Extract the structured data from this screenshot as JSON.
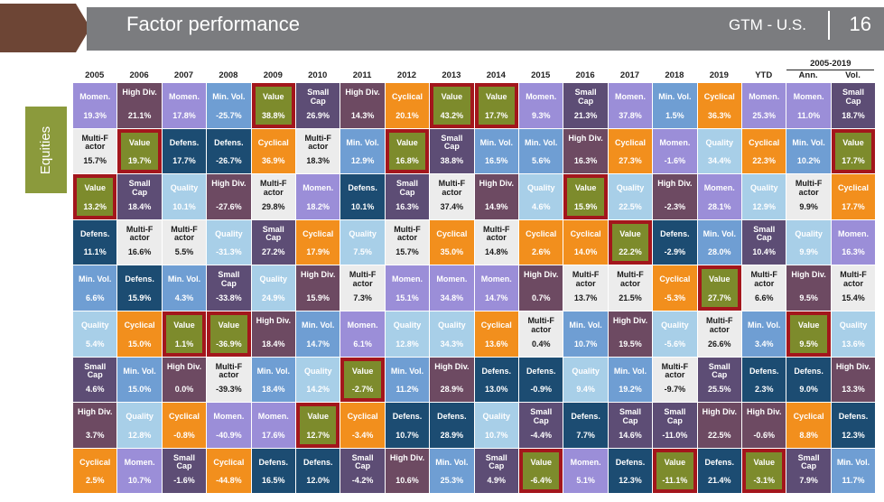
{
  "header": {
    "title": "Factor performance",
    "section": "GTM - U.S.",
    "page": "16"
  },
  "side_tab": "Equities",
  "colors": {
    "Momen.": "#9b8ed8",
    "High Div.": "#6d4a62",
    "Min. Vol.": "#6f9ed3",
    "Value": "#7d8b2c",
    "Small Cap": "#5d4d75",
    "Cyclical": "#f28f1d",
    "Multi-Factor": "#ececec",
    "Defens.": "#1c4c72",
    "Quality": "#a8cfe8",
    "highlight": "#a3161c",
    "header_bar": "#7b7c7f",
    "header_chevron": "#6d4535",
    "side_tab": "#8b9a3c"
  },
  "chart_data": {
    "type": "table",
    "title": "Factor performance",
    "columns": [
      "2005",
      "2006",
      "2007",
      "2008",
      "2009",
      "2010",
      "2011",
      "2012",
      "2013",
      "2014",
      "2015",
      "2016",
      "2017",
      "2018",
      "2019",
      "YTD",
      "Ann.",
      "Vol."
    ],
    "column_group": {
      "label": "2005-2019",
      "covers": [
        "Ann.",
        "Vol."
      ]
    },
    "cells": [
      [
        {
          "name": "Momen.",
          "value": "19.3%"
        },
        {
          "name": "Multi-Factor",
          "value": "15.7%"
        },
        {
          "name": "Value",
          "value": "13.2%",
          "highlight": true
        },
        {
          "name": "Defens.",
          "value": "11.1%"
        },
        {
          "name": "Min. Vol.",
          "value": "6.6%"
        },
        {
          "name": "Quality",
          "value": "5.4%"
        },
        {
          "name": "Small Cap",
          "value": "4.6%"
        },
        {
          "name": "High Div.",
          "value": "3.7%"
        },
        {
          "name": "Cyclical",
          "value": "2.5%"
        }
      ],
      [
        {
          "name": "High Div.",
          "value": "21.1%"
        },
        {
          "name": "Value",
          "value": "19.7%",
          "highlight": true
        },
        {
          "name": "Small Cap",
          "value": "18.4%"
        },
        {
          "name": "Multi-Factor",
          "value": "16.6%"
        },
        {
          "name": "Defens.",
          "value": "15.9%"
        },
        {
          "name": "Cyclical",
          "value": "15.0%"
        },
        {
          "name": "Min. Vol.",
          "value": "15.0%"
        },
        {
          "name": "Quality",
          "value": "12.8%"
        },
        {
          "name": "Momen.",
          "value": "10.7%"
        }
      ],
      [
        {
          "name": "Momen.",
          "value": "17.8%"
        },
        {
          "name": "Defens.",
          "value": "17.7%"
        },
        {
          "name": "Quality",
          "value": "10.1%"
        },
        {
          "name": "Multi-Factor",
          "value": "5.5%"
        },
        {
          "name": "Min. Vol.",
          "value": "4.3%"
        },
        {
          "name": "Value",
          "value": "1.1%",
          "highlight": true
        },
        {
          "name": "High Div.",
          "value": "0.0%"
        },
        {
          "name": "Cyclical",
          "value": "-0.8%"
        },
        {
          "name": "Small Cap",
          "value": "-1.6%"
        }
      ],
      [
        {
          "name": "Min. Vol.",
          "value": "-25.7%"
        },
        {
          "name": "Defens.",
          "value": "-26.7%"
        },
        {
          "name": "High Div.",
          "value": "-27.6%"
        },
        {
          "name": "Quality",
          "value": "-31.3%"
        },
        {
          "name": "Small Cap",
          "value": "-33.8%"
        },
        {
          "name": "Value",
          "value": "-36.9%",
          "highlight": true
        },
        {
          "name": "Multi-Factor",
          "value": "-39.3%"
        },
        {
          "name": "Momen.",
          "value": "-40.9%"
        },
        {
          "name": "Cyclical",
          "value": "-44.8%"
        }
      ],
      [
        {
          "name": "Value",
          "value": "38.8%",
          "highlight": true
        },
        {
          "name": "Cyclical",
          "value": "36.9%"
        },
        {
          "name": "Multi-Factor",
          "value": "29.8%"
        },
        {
          "name": "Small Cap",
          "value": "27.2%"
        },
        {
          "name": "Quality",
          "value": "24.9%"
        },
        {
          "name": "High Div.",
          "value": "18.4%"
        },
        {
          "name": "Min. Vol.",
          "value": "18.4%"
        },
        {
          "name": "Momen.",
          "value": "17.6%"
        },
        {
          "name": "Defens.",
          "value": "16.5%"
        }
      ],
      [
        {
          "name": "Small Cap",
          "value": "26.9%"
        },
        {
          "name": "Multi-Factor",
          "value": "18.3%"
        },
        {
          "name": "Momen.",
          "value": "18.2%"
        },
        {
          "name": "Cyclical",
          "value": "17.9%"
        },
        {
          "name": "High Div.",
          "value": "15.9%"
        },
        {
          "name": "Min. Vol.",
          "value": "14.7%"
        },
        {
          "name": "Quality",
          "value": "14.2%"
        },
        {
          "name": "Value",
          "value": "12.7%",
          "highlight": true
        },
        {
          "name": "Defens.",
          "value": "12.0%"
        }
      ],
      [
        {
          "name": "High Div.",
          "value": "14.3%"
        },
        {
          "name": "Min. Vol.",
          "value": "12.9%"
        },
        {
          "name": "Defens.",
          "value": "10.1%"
        },
        {
          "name": "Quality",
          "value": "7.5%"
        },
        {
          "name": "Multi-Factor",
          "value": "7.3%"
        },
        {
          "name": "Momen.",
          "value": "6.1%"
        },
        {
          "name": "Value",
          "value": "-2.7%",
          "highlight": true
        },
        {
          "name": "Cyclical",
          "value": "-3.4%"
        },
        {
          "name": "Small Cap",
          "value": "-4.2%"
        }
      ],
      [
        {
          "name": "Cyclical",
          "value": "20.1%"
        },
        {
          "name": "Value",
          "value": "16.8%",
          "highlight": true
        },
        {
          "name": "Small Cap",
          "value": "16.3%"
        },
        {
          "name": "Multi-Factor",
          "value": "15.7%"
        },
        {
          "name": "Momen.",
          "value": "15.1%"
        },
        {
          "name": "Quality",
          "value": "12.8%"
        },
        {
          "name": "Min. Vol.",
          "value": "11.2%"
        },
        {
          "name": "Defens.",
          "value": "10.7%"
        },
        {
          "name": "High Div.",
          "value": "10.6%"
        }
      ],
      [
        {
          "name": "Value",
          "value": "43.2%",
          "highlight": true
        },
        {
          "name": "Small Cap",
          "value": "38.8%"
        },
        {
          "name": "Multi-Factor",
          "value": "37.4%"
        },
        {
          "name": "Cyclical",
          "value": "35.0%"
        },
        {
          "name": "Momen.",
          "value": "34.8%"
        },
        {
          "name": "Quality",
          "value": "34.3%"
        },
        {
          "name": "High Div.",
          "value": "28.9%"
        },
        {
          "name": "Defens.",
          "value": "28.9%"
        },
        {
          "name": "Min. Vol.",
          "value": "25.3%"
        }
      ],
      [
        {
          "name": "Value",
          "value": "17.7%",
          "highlight": true
        },
        {
          "name": "Min. Vol.",
          "value": "16.5%"
        },
        {
          "name": "High Div.",
          "value": "14.9%"
        },
        {
          "name": "Multi-Factor",
          "value": "14.8%"
        },
        {
          "name": "Momen.",
          "value": "14.7%"
        },
        {
          "name": "Cyclical",
          "value": "13.6%"
        },
        {
          "name": "Defens.",
          "value": "13.0%"
        },
        {
          "name": "Quality",
          "value": "10.7%"
        },
        {
          "name": "Small Cap",
          "value": "4.9%"
        }
      ],
      [
        {
          "name": "Momen.",
          "value": "9.3%"
        },
        {
          "name": "Min. Vol.",
          "value": "5.6%"
        },
        {
          "name": "Quality",
          "value": "4.6%"
        },
        {
          "name": "Cyclical",
          "value": "2.6%"
        },
        {
          "name": "High Div.",
          "value": "0.7%"
        },
        {
          "name": "Multi-Factor",
          "value": "0.4%"
        },
        {
          "name": "Defens.",
          "value": "-0.9%"
        },
        {
          "name": "Small Cap",
          "value": "-4.4%"
        },
        {
          "name": "Value",
          "value": "-6.4%",
          "highlight": true
        }
      ],
      [
        {
          "name": "Small Cap",
          "value": "21.3%"
        },
        {
          "name": "High Div.",
          "value": "16.3%"
        },
        {
          "name": "Value",
          "value": "15.9%",
          "highlight": true
        },
        {
          "name": "Cyclical",
          "value": "14.0%"
        },
        {
          "name": "Multi-Factor",
          "value": "13.7%"
        },
        {
          "name": "Min. Vol.",
          "value": "10.7%"
        },
        {
          "name": "Quality",
          "value": "9.4%"
        },
        {
          "name": "Defens.",
          "value": "7.7%"
        },
        {
          "name": "Momen.",
          "value": "5.1%"
        }
      ],
      [
        {
          "name": "Momen.",
          "value": "37.8%"
        },
        {
          "name": "Cyclical",
          "value": "27.3%"
        },
        {
          "name": "Quality",
          "value": "22.5%"
        },
        {
          "name": "Value",
          "value": "22.2%",
          "highlight": true
        },
        {
          "name": "Multi-Factor",
          "value": "21.5%"
        },
        {
          "name": "High Div.",
          "value": "19.5%"
        },
        {
          "name": "Min. Vol.",
          "value": "19.2%"
        },
        {
          "name": "Small Cap",
          "value": "14.6%"
        },
        {
          "name": "Defens.",
          "value": "12.3%"
        }
      ],
      [
        {
          "name": "Min. Vol.",
          "value": "1.5%"
        },
        {
          "name": "Momen.",
          "value": "-1.6%"
        },
        {
          "name": "High Div.",
          "value": "-2.3%"
        },
        {
          "name": "Defens.",
          "value": "-2.9%"
        },
        {
          "name": "Cyclical",
          "value": "-5.3%"
        },
        {
          "name": "Quality",
          "value": "-5.6%"
        },
        {
          "name": "Multi-Factor",
          "value": "-9.7%"
        },
        {
          "name": "Small Cap",
          "value": "-11.0%"
        },
        {
          "name": "Value",
          "value": "-11.1%",
          "highlight": true
        }
      ],
      [
        {
          "name": "Cyclical",
          "value": "36.3%"
        },
        {
          "name": "Quality",
          "value": "34.4%"
        },
        {
          "name": "Momen.",
          "value": "28.1%"
        },
        {
          "name": "Min. Vol.",
          "value": "28.0%"
        },
        {
          "name": "Value",
          "value": "27.7%",
          "highlight": true
        },
        {
          "name": "Multi-Factor",
          "value": "26.6%"
        },
        {
          "name": "Small Cap",
          "value": "25.5%"
        },
        {
          "name": "High Div.",
          "value": "22.5%"
        },
        {
          "name": "Defens.",
          "value": "21.4%"
        }
      ],
      [
        {
          "name": "Momen.",
          "value": "25.3%"
        },
        {
          "name": "Cyclical",
          "value": "22.3%"
        },
        {
          "name": "Quality",
          "value": "12.9%"
        },
        {
          "name": "Small Cap",
          "value": "10.4%"
        },
        {
          "name": "Multi-Factor",
          "value": "6.6%"
        },
        {
          "name": "Min. Vol.",
          "value": "3.4%"
        },
        {
          "name": "Defens.",
          "value": "2.3%"
        },
        {
          "name": "High Div.",
          "value": "-0.6%"
        },
        {
          "name": "Value",
          "value": "-3.1%",
          "highlight": true
        }
      ],
      [
        {
          "name": "Momen.",
          "value": "11.0%"
        },
        {
          "name": "Min. Vol.",
          "value": "10.2%"
        },
        {
          "name": "Multi-Factor",
          "value": "9.9%"
        },
        {
          "name": "Quality",
          "value": "9.9%"
        },
        {
          "name": "High Div.",
          "value": "9.5%"
        },
        {
          "name": "Value",
          "value": "9.5%",
          "highlight": true
        },
        {
          "name": "Defens.",
          "value": "9.0%"
        },
        {
          "name": "Cyclical",
          "value": "8.8%"
        },
        {
          "name": "Small Cap",
          "value": "7.9%"
        }
      ],
      [
        {
          "name": "Small Cap",
          "value": "18.7%"
        },
        {
          "name": "Value",
          "value": "17.7%",
          "highlight": true
        },
        {
          "name": "Cyclical",
          "value": "17.7%"
        },
        {
          "name": "Momen.",
          "value": "16.3%"
        },
        {
          "name": "Multi-Factor",
          "value": "15.4%"
        },
        {
          "name": "Quality",
          "value": "13.6%"
        },
        {
          "name": "High Div.",
          "value": "13.3%"
        },
        {
          "name": "Defens.",
          "value": "12.3%"
        },
        {
          "name": "Min. Vol.",
          "value": "11.7%"
        }
      ]
    ]
  }
}
